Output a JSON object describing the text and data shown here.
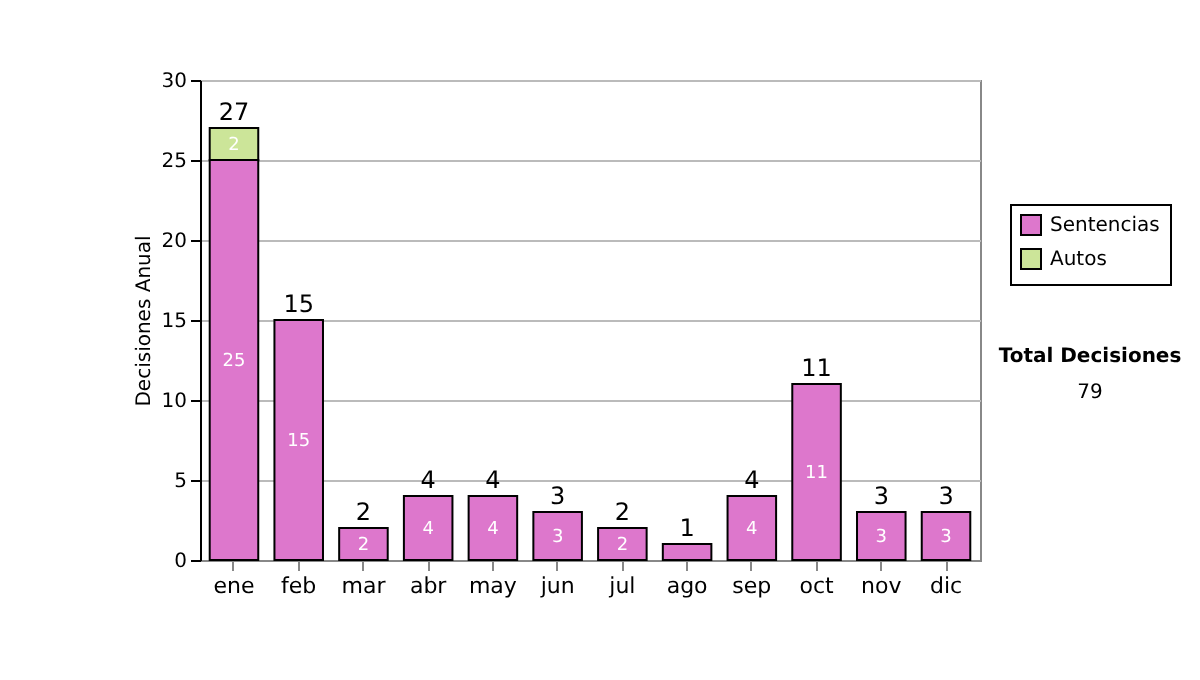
{
  "chart_data": {
    "type": "bar",
    "stacked": true,
    "ylabel": "Decisiones Anual",
    "categories": [
      "ene",
      "feb",
      "mar",
      "abr",
      "may",
      "jun",
      "jul",
      "ago",
      "sep",
      "oct",
      "nov",
      "dic"
    ],
    "series": [
      {
        "name": "Sentencias",
        "color": "#dd77cc",
        "values": [
          25,
          15,
          2,
          4,
          4,
          3,
          2,
          1,
          4,
          11,
          3,
          3
        ],
        "value_labels": [
          "25",
          "15",
          "2",
          "4",
          "4",
          "3",
          "2",
          null,
          "4",
          "11",
          "3",
          "3"
        ]
      },
      {
        "name": "Autos",
        "color": "#cce599",
        "values": [
          2,
          null,
          null,
          null,
          null,
          null,
          null,
          null,
          null,
          null,
          null,
          null
        ],
        "value_labels": [
          "2",
          null,
          null,
          null,
          null,
          null,
          null,
          null,
          null,
          null,
          null,
          null
        ]
      }
    ],
    "totals": [
      "27",
      "15",
      "2",
      "4",
      "4",
      "3",
      "2",
      "1",
      "4",
      "11",
      "3",
      "3"
    ],
    "ylim": [
      0,
      30
    ],
    "yticks": [
      0,
      5,
      10,
      15,
      20,
      25,
      30
    ],
    "grid": "y",
    "legend": "right",
    "annotations": [
      "Total Decisiones",
      "79"
    ]
  }
}
